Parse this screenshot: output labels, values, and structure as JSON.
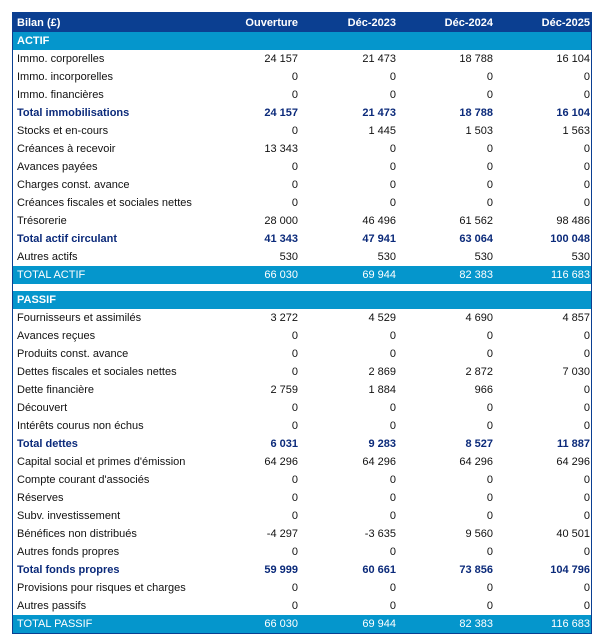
{
  "header": {
    "title": "Bilan (£)",
    "columns": [
      "Ouverture",
      "Déc-2023",
      "Déc-2024",
      "Déc-2025"
    ]
  },
  "colors": {
    "header": "#0b3f91",
    "section": "#0596cc",
    "total_text": "#0b2a7a"
  },
  "actif": {
    "label": "ACTIF",
    "rows": [
      {
        "label": "Immo. corporelles",
        "values": [
          "24 157",
          "21 473",
          "18 788",
          "16 104"
        ],
        "type": "normal"
      },
      {
        "label": "Immo. incorporelles",
        "values": [
          "0",
          "0",
          "0",
          "0"
        ],
        "type": "normal"
      },
      {
        "label": "Immo. financières",
        "values": [
          "0",
          "0",
          "0",
          "0"
        ],
        "type": "normal"
      },
      {
        "label": "Total immobilisations",
        "values": [
          "24 157",
          "21 473",
          "18 788",
          "16 104"
        ],
        "type": "total"
      },
      {
        "label": "Stocks et en-cours",
        "values": [
          "0",
          "1 445",
          "1 503",
          "1 563"
        ],
        "type": "normal"
      },
      {
        "label": "Créances à recevoir",
        "values": [
          "13 343",
          "0",
          "0",
          "0"
        ],
        "type": "normal"
      },
      {
        "label": "Avances payées",
        "values": [
          "0",
          "0",
          "0",
          "0"
        ],
        "type": "normal"
      },
      {
        "label": "Charges const. avance",
        "values": [
          "0",
          "0",
          "0",
          "0"
        ],
        "type": "normal"
      },
      {
        "label": "Créances fiscales et sociales nettes",
        "values": [
          "0",
          "0",
          "0",
          "0"
        ],
        "type": "normal"
      },
      {
        "label": "Trésorerie",
        "values": [
          "28 000",
          "46 496",
          "61 562",
          "98 486"
        ],
        "type": "normal"
      },
      {
        "label": "Total actif circulant",
        "values": [
          "41 343",
          "47 941",
          "63 064",
          "100 048"
        ],
        "type": "total"
      },
      {
        "label": "Autres actifs",
        "values": [
          "530",
          "530",
          "530",
          "530"
        ],
        "type": "normal"
      },
      {
        "label": "TOTAL ACTIF",
        "values": [
          "66 030",
          "69 944",
          "82 383",
          "116 683"
        ],
        "type": "grand"
      }
    ]
  },
  "passif": {
    "label": "PASSIF",
    "rows": [
      {
        "label": "Fournisseurs et assimilés",
        "values": [
          "3 272",
          "4 529",
          "4 690",
          "4 857"
        ],
        "type": "normal"
      },
      {
        "label": "Avances reçues",
        "values": [
          "0",
          "0",
          "0",
          "0"
        ],
        "type": "normal"
      },
      {
        "label": "Produits const. avance",
        "values": [
          "0",
          "0",
          "0",
          "0"
        ],
        "type": "normal"
      },
      {
        "label": "Dettes fiscales et sociales nettes",
        "values": [
          "0",
          "2 869",
          "2 872",
          "7 030"
        ],
        "type": "normal"
      },
      {
        "label": "Dette financière",
        "values": [
          "2 759",
          "1 884",
          "966",
          "0"
        ],
        "type": "normal"
      },
      {
        "label": "Découvert",
        "values": [
          "0",
          "0",
          "0",
          "0"
        ],
        "type": "normal"
      },
      {
        "label": "Intérêts courus non échus",
        "values": [
          "0",
          "0",
          "0",
          "0"
        ],
        "type": "normal"
      },
      {
        "label": "Total dettes",
        "values": [
          "6 031",
          "9 283",
          "8 527",
          "11 887"
        ],
        "type": "total"
      },
      {
        "label": "Capital social et primes d'émission",
        "values": [
          "64 296",
          "64 296",
          "64 296",
          "64 296"
        ],
        "type": "normal"
      },
      {
        "label": "Compte courant d'associés",
        "values": [
          "0",
          "0",
          "0",
          "0"
        ],
        "type": "normal"
      },
      {
        "label": "Réserves",
        "values": [
          "0",
          "0",
          "0",
          "0"
        ],
        "type": "normal"
      },
      {
        "label": "Subv. investissement",
        "values": [
          "0",
          "0",
          "0",
          "0"
        ],
        "type": "normal"
      },
      {
        "label": "Bénéfices non distribués",
        "values": [
          "-4 297",
          "-3 635",
          "9 560",
          "40 501"
        ],
        "type": "normal"
      },
      {
        "label": "Autres fonds propres",
        "values": [
          "0",
          "0",
          "0",
          "0"
        ],
        "type": "normal"
      },
      {
        "label": "Total fonds propres",
        "values": [
          "59 999",
          "60 661",
          "73 856",
          "104 796"
        ],
        "type": "total"
      },
      {
        "label": "Provisions pour risques et charges",
        "values": [
          "0",
          "0",
          "0",
          "0"
        ],
        "type": "normal"
      },
      {
        "label": "Autres passifs",
        "values": [
          "0",
          "0",
          "0",
          "0"
        ],
        "type": "normal"
      },
      {
        "label": "TOTAL PASSIF",
        "values": [
          "66 030",
          "69 944",
          "82 383",
          "116 683"
        ],
        "type": "grand"
      }
    ]
  }
}
